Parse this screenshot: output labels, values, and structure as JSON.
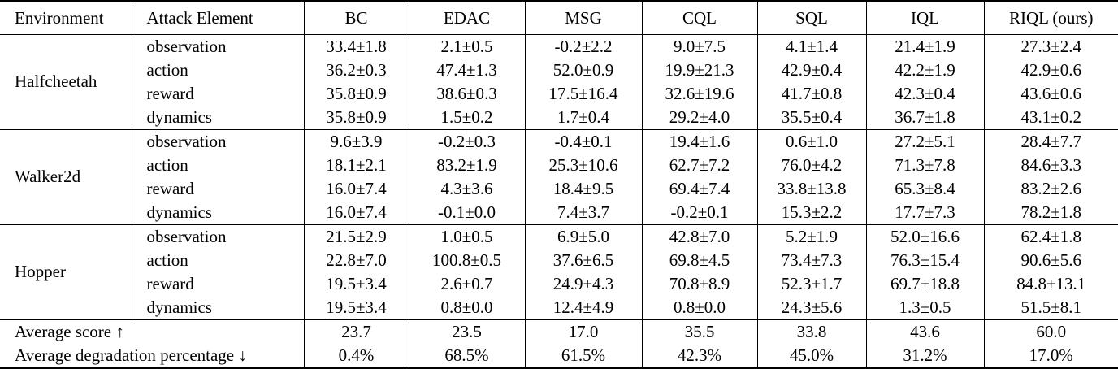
{
  "header": [
    "Environment",
    "Attack Element",
    "BC",
    "EDAC",
    "MSG",
    "CQL",
    "SQL",
    "IQL",
    "RIQL (ours)"
  ],
  "groups": [
    {
      "env": "Halfcheetah",
      "rows": [
        {
          "attack": "observation",
          "values": [
            "33.4±1.8",
            "2.1±0.5",
            "-0.2±2.2",
            "9.0±7.5",
            "4.1±1.4",
            "21.4±1.9",
            "27.3±2.4"
          ],
          "bold": [
            0
          ]
        },
        {
          "attack": "action",
          "values": [
            "36.2±0.3",
            "47.4±1.3",
            "52.0±0.9",
            "19.9±21.3",
            "42.9±0.4",
            "42.2±1.9",
            "42.9±0.6"
          ],
          "bold": [
            2
          ]
        },
        {
          "attack": "reward",
          "values": [
            "35.8±0.9",
            "38.6±0.3",
            "17.5±16.4",
            "32.6±19.6",
            "41.7±0.8",
            "42.3±0.4",
            "43.6±0.6"
          ],
          "bold": [
            6
          ]
        },
        {
          "attack": "dynamics",
          "values": [
            "35.8±0.9",
            "1.5±0.2",
            "1.7±0.4",
            "29.2±4.0",
            "35.5±0.4",
            "36.7±1.8",
            "43.1±0.2"
          ],
          "bold": [
            6
          ]
        }
      ]
    },
    {
      "env": "Walker2d",
      "rows": [
        {
          "attack": "observation",
          "values": [
            "9.6±3.9",
            "-0.2±0.3",
            "-0.4±0.1",
            "19.4±1.6",
            "0.6±1.0",
            "27.2±5.1",
            "28.4±7.7"
          ],
          "bold": [
            6
          ]
        },
        {
          "attack": "action",
          "values": [
            "18.1±2.1",
            "83.2±1.9",
            "25.3±10.6",
            "62.7±7.2",
            "76.0±4.2",
            "71.3±7.8",
            "84.6±3.3"
          ],
          "bold": [
            6
          ]
        },
        {
          "attack": "reward",
          "values": [
            "16.0±7.4",
            "4.3±3.6",
            "18.4±9.5",
            "69.4±7.4",
            "33.8±13.8",
            "65.3±8.4",
            "83.2±2.6"
          ],
          "bold": [
            6
          ]
        },
        {
          "attack": "dynamics",
          "values": [
            "16.0±7.4",
            "-0.1±0.0",
            "7.4±3.7",
            "-0.2±0.1",
            "15.3±2.2",
            "17.7±7.3",
            "78.2±1.8"
          ],
          "bold": [
            6
          ]
        }
      ]
    },
    {
      "env": "Hopper",
      "rows": [
        {
          "attack": "observation",
          "values": [
            "21.5±2.9",
            "1.0±0.5",
            "6.9±5.0",
            "42.8±7.0",
            "5.2±1.9",
            "52.0±16.6",
            "62.4±1.8"
          ],
          "bold": [
            6
          ]
        },
        {
          "attack": "action",
          "values": [
            "22.8±7.0",
            "100.8±0.5",
            "37.6±6.5",
            "69.8±4.5",
            "73.4±7.3",
            "76.3±15.4",
            "90.6±5.6"
          ],
          "bold": [
            1
          ]
        },
        {
          "attack": "reward",
          "values": [
            "19.5±3.4",
            "2.6±0.7",
            "24.9±4.3",
            "70.8±8.9",
            "52.3±1.7",
            "69.7±18.8",
            "84.8±13.1"
          ],
          "bold": [
            6
          ]
        },
        {
          "attack": "dynamics",
          "values": [
            "19.5±3.4",
            "0.8±0.0",
            "12.4±4.9",
            "0.8±0.0",
            "24.3±5.6",
            "1.3±0.5",
            "51.5±8.1"
          ],
          "bold": [
            6
          ]
        }
      ]
    }
  ],
  "summary": [
    {
      "label": "Average score ↑",
      "values": [
        "23.7",
        "23.5",
        "17.0",
        "35.5",
        "33.8",
        "43.6",
        "60.0"
      ],
      "bold": [
        6
      ]
    },
    {
      "label": "Average degradation percentage ↓",
      "values": [
        "0.4%",
        "68.5%",
        "61.5%",
        "42.3%",
        "45.0%",
        "31.2%",
        "17.0%"
      ],
      "bold": []
    }
  ]
}
